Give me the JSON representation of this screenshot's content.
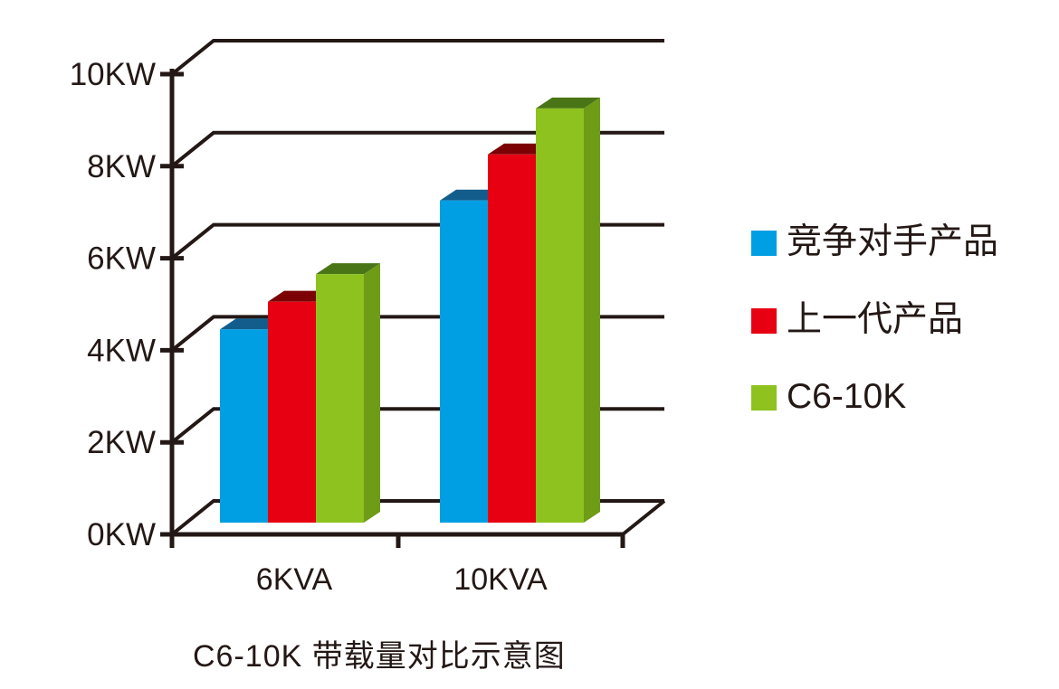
{
  "chart_data": {
    "type": "bar",
    "style": "3d-column",
    "title": "C6-10K 带载量对比示意图",
    "categories": [
      "6KVA",
      "10KVA"
    ],
    "series": [
      {
        "name": "竞争对手产品",
        "values": [
          4.2,
          7.0
        ],
        "color": "#009FE3",
        "top_color": "#135D8C",
        "side_color": "#0A78AE"
      },
      {
        "name": "上一代产品",
        "values": [
          4.8,
          8.0
        ],
        "color": "#E60012",
        "top_color": "#7C0104",
        "side_color": "#AB000D"
      },
      {
        "name": "C6-10K",
        "values": [
          5.4,
          9.0
        ],
        "color": "#8DC21F",
        "top_color": "#4A7516",
        "side_color": "#6E9C16"
      }
    ],
    "ytick_labels": [
      "0KW",
      "2KW",
      "4KW",
      "6KW",
      "8KW",
      "10KW"
    ],
    "ylim": [
      0,
      10
    ],
    "y_unit": "KW",
    "grid": true,
    "legend_position": "right"
  },
  "colors": {
    "axis": "#231815",
    "text": "#231815",
    "background": "#FFFFFF"
  }
}
